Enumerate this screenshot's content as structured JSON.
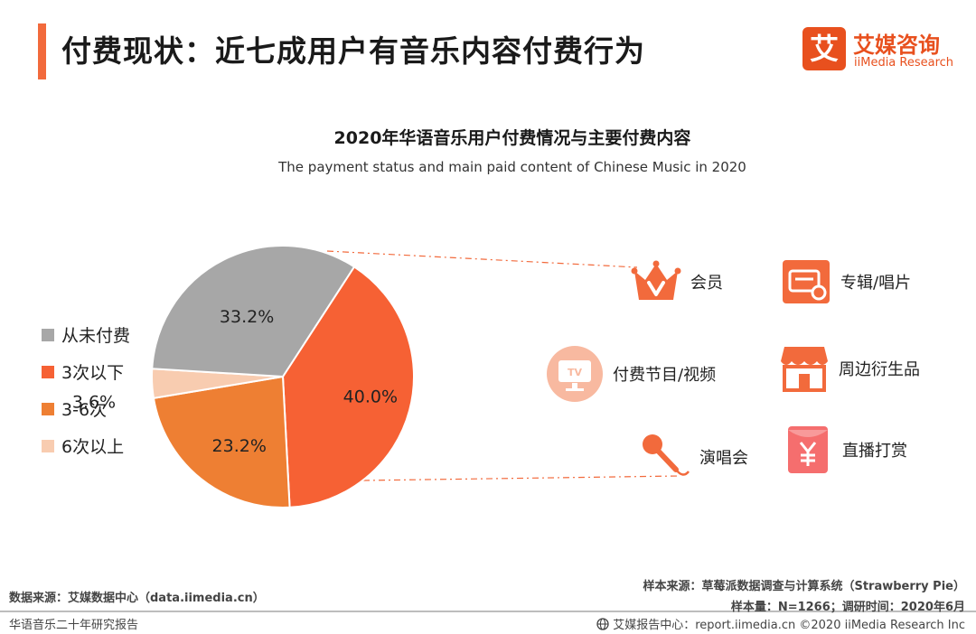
{
  "page_title": "付费现状：近七成用户有音乐内容付费行为",
  "logo": {
    "mark": "艾",
    "cn": "艾媒咨询",
    "en": "iiMedia Research"
  },
  "chart_data": {
    "type": "pie",
    "title": "2020年华语音乐用户付费情况与主要付费内容",
    "subtitle": "The payment status and main paid content of Chinese Music in 2020",
    "slices": [
      {
        "label": "3次以下",
        "value": 40.0,
        "value_label": "40.0%",
        "color": "#f66134"
      },
      {
        "label": "3-6次",
        "value": 23.2,
        "value_label": "23.2%",
        "color": "#ee7f33"
      },
      {
        "label": "6次以上",
        "value": 3.6,
        "value_label": "3.6%",
        "color": "#f8ccb0"
      },
      {
        "label": "从未付费",
        "value": 33.2,
        "value_label": "33.2%",
        "color": "#a7a7a7"
      }
    ],
    "legend": [
      {
        "label": "从未付费",
        "color": "#a7a7a7"
      },
      {
        "label": "3次以下",
        "color": "#f66134"
      },
      {
        "label": "3-6次",
        "color": "#ee7f33"
      },
      {
        "label": "6次以上",
        "color": "#f8ccb0"
      }
    ]
  },
  "paid_content": [
    {
      "label": "会员",
      "icon": "crown-icon"
    },
    {
      "label": "专辑/唱片",
      "icon": "album-icon"
    },
    {
      "label": "付费节目/视频",
      "icon": "tv-icon"
    },
    {
      "label": "周边衍生品",
      "icon": "shop-icon"
    },
    {
      "label": "演唱会",
      "icon": "microphone-icon"
    },
    {
      "label": "直播打赏",
      "icon": "red-envelope-icon"
    }
  ],
  "footer": {
    "data_source": "数据来源：艾媒数据中心（data.iimedia.cn）",
    "report_name": "华语音乐二十年研究报告",
    "sample_source": "样本来源：草莓派数据调查与计算系统（Strawberry Pie）",
    "sample_info": "样本量：N=1266；调研时间：2020年6月",
    "copyright": "艾媒报告中心：report.iimedia.cn   ©2020  iiMedia Research  Inc"
  }
}
